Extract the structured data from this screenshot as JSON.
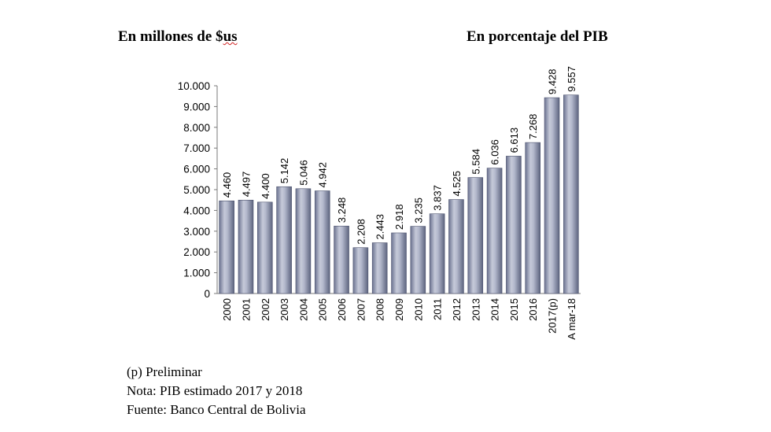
{
  "headings": {
    "left_prefix": "En millones de $",
    "left_suffix": "us",
    "right": "En porcentaje del PIB"
  },
  "notes": [
    "(p) Preliminar",
    "Nota: PIB estimado 2017 y 2018",
    "Fuente: Banco Central de Bolivia"
  ],
  "chart_data": {
    "type": "bar",
    "categories": [
      "2000",
      "2001",
      "2002",
      "2003",
      "2004",
      "2005",
      "2006",
      "2007",
      "2008",
      "2009",
      "2010",
      "2011",
      "2012",
      "2013",
      "2014",
      "2015",
      "2016",
      "2017(p)",
      "A mar-18"
    ],
    "values": [
      4460,
      4497,
      4400,
      5142,
      5046,
      4942,
      3248,
      2208,
      2443,
      2918,
      3235,
      3837,
      4525,
      5584,
      6036,
      6613,
      7268,
      9428,
      9557
    ],
    "value_labels": [
      "4.460",
      "4.497",
      "4.400",
      "5.142",
      "5.046",
      "4.942",
      "3.248",
      "2.208",
      "2.443",
      "2.918",
      "3.235",
      "3.837",
      "4.525",
      "5.584",
      "6.036",
      "6.613",
      "7.268",
      "9.428",
      "9.557"
    ],
    "y_ticks": [
      "0",
      "1.000",
      "2.000",
      "3.000",
      "4.000",
      "5.000",
      "6.000",
      "7.000",
      "8.000",
      "9.000",
      "10.000"
    ],
    "ylim": [
      0,
      10000
    ],
    "grid": false,
    "bar_color": "#8c93ad"
  }
}
